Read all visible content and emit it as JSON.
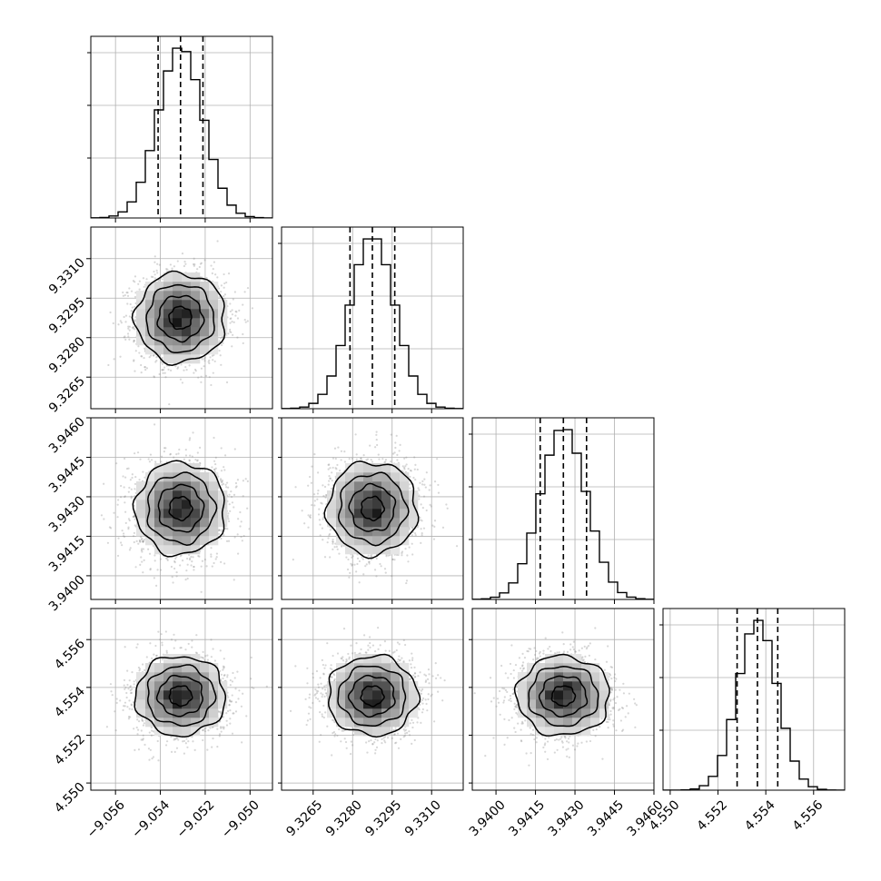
{
  "chart_data": {
    "type": "corner",
    "title": "",
    "colors": {
      "line": "#000000",
      "grid": "#b0b0b0",
      "points": "#8c8c8c"
    },
    "quantiles": [
      0.16,
      0.5,
      0.84
    ],
    "parameters": [
      {
        "mean": -9.0531,
        "std": 0.001,
        "range": [
          -9.0571,
          -9.049
        ],
        "ticks": [
          -9.056,
          -9.054,
          -9.052,
          -9.05
        ],
        "tick_labels": [
          "−9.056",
          "−9.054",
          "−9.052",
          "−9.050"
        ],
        "quantile_values": [
          -9.0541,
          -9.0531,
          -9.0521
        ]
      },
      {
        "mean": 9.32875,
        "std": 0.00085,
        "range": [
          9.3253,
          9.3322
        ],
        "ticks": [
          9.3265,
          9.328,
          9.3295,
          9.331
        ],
        "tick_labels": [
          "9.3265",
          "9.3280",
          "9.3295",
          "9.3310"
        ],
        "quantile_values": [
          9.3279,
          9.32875,
          9.3296
        ]
      },
      {
        "mean": 3.94256,
        "std": 0.00088,
        "range": [
          3.9391,
          3.946
        ],
        "ticks": [
          3.94,
          3.9415,
          3.943,
          3.9445,
          3.946
        ],
        "tick_labels": [
          "3.9400",
          "3.9415",
          "3.9430",
          "3.9445",
          "3.9460"
        ],
        "quantile_values": [
          3.94168,
          3.94256,
          3.94344
        ]
      },
      {
        "mean": 4.55365,
        "std": 0.00083,
        "range": [
          4.5497,
          4.5573
        ],
        "ticks": [
          4.55,
          4.552,
          4.554,
          4.556
        ],
        "tick_labels": [
          "4.550",
          "4.552",
          "4.554",
          "4.556"
        ],
        "quantile_values": [
          4.5528,
          4.55365,
          4.5545
        ]
      }
    ]
  }
}
